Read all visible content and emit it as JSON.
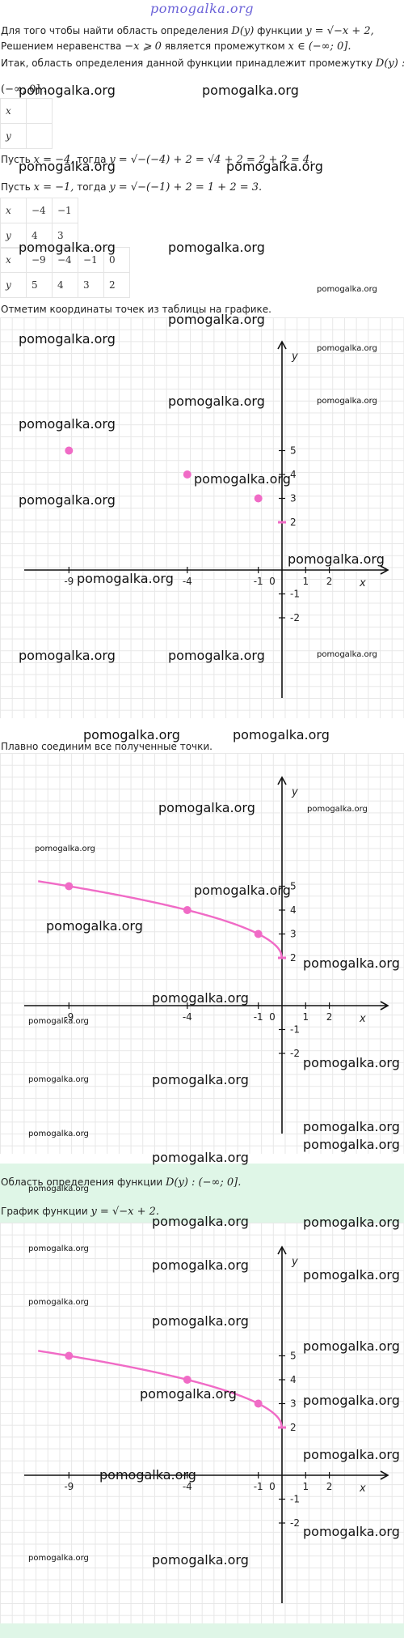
{
  "site": {
    "logo": "pomogalka.org"
  },
  "text": {
    "p1_a": "Для того чтобы найти область определения ",
    "p1_dy": "D(y)",
    "p1_b": " функции ",
    "p1_func": "y = √−x + 2,",
    "p2_a": "Решением неравенства ",
    "p2_ineq": "−x ⩾ 0",
    "p2_b": " является промежутком ",
    "p2_set": "x ∈ (−∞; 0].",
    "p3_a": "Итак, область определения данной функции принадлежит промежутку ",
    "p3_dy": "D(y) :",
    "p4_interval": "(−∞; 0]",
    "p4_dot": " .",
    "p5_a": "Пусть ",
    "p5_x": "x = −4,",
    "p5_b": " тогда ",
    "p5_expr": "y = √−(−4) + 2 = √4 + 2 = 2 + 2 = 4.",
    "p6_a": "Пусть ",
    "p6_x": "x = −1,",
    "p6_b": " тогда ",
    "p6_expr": "y = √−(−1) + 2 = 1 + 2 = 3.",
    "p7": "Отметим координаты точек из таблицы на графике.",
    "p8": "Плавно соединим все полученные точки.",
    "p9_a": "Область определения функции ",
    "p9_expr": "D(y) : (−∞; 0].",
    "p10_a": "График функции ",
    "p10_expr": "y = √−x + 2."
  },
  "tables": {
    "t1": {
      "h1": "x",
      "h2": "y"
    },
    "t2": {
      "h1": "x",
      "h2": "y",
      "x": [
        "−4",
        "−1"
      ],
      "y": [
        "4",
        "3"
      ]
    },
    "t3": {
      "h1": "x",
      "h2": "y",
      "x": [
        "−9",
        "−4",
        "−1",
        "0"
      ],
      "y": [
        "5",
        "4",
        "3",
        "2"
      ]
    }
  },
  "chart_data": [
    {
      "type": "scatter",
      "title": "",
      "xlabel": "x",
      "ylabel": "y",
      "x_ticks": [
        "-9",
        "-4",
        "-1",
        "0",
        "1",
        "2"
      ],
      "y_ticks": [
        "5",
        "4",
        "3",
        "2",
        "-1",
        "-2"
      ],
      "points": [
        {
          "x": -9,
          "y": 5
        },
        {
          "x": -4,
          "y": 4
        },
        {
          "x": -1,
          "y": 3
        },
        {
          "x": 0,
          "y": 2
        }
      ],
      "grid": true
    },
    {
      "type": "line",
      "title": "",
      "xlabel": "x",
      "ylabel": "y",
      "x_ticks": [
        "-9",
        "-4",
        "-1",
        "0",
        "1",
        "2"
      ],
      "y_ticks": [
        "5",
        "4",
        "3",
        "2",
        "-1",
        "-2"
      ],
      "points": [
        {
          "x": -9,
          "y": 5
        },
        {
          "x": -4,
          "y": 4
        },
        {
          "x": -1,
          "y": 3
        },
        {
          "x": 0,
          "y": 2
        }
      ],
      "function": "y = √−x + 2",
      "grid": true
    },
    {
      "type": "line",
      "title": "",
      "xlabel": "x",
      "ylabel": "y",
      "x_ticks": [
        "-9",
        "-4",
        "-1",
        "0",
        "1",
        "2"
      ],
      "y_ticks": [
        "5",
        "4",
        "3",
        "2",
        "-1",
        "-2"
      ],
      "points": [
        {
          "x": -9,
          "y": 5
        },
        {
          "x": -4,
          "y": 4
        },
        {
          "x": -1,
          "y": 3
        },
        {
          "x": 0,
          "y": 2
        }
      ],
      "function": "y = √−x + 2",
      "grid": true
    }
  ],
  "colors": {
    "curve": "#f06bc6",
    "point": "#f06bc6",
    "highlight_band": "#dff6e7",
    "logo": "#6b62d8",
    "grid": "#e7e7e7"
  },
  "watermark": {
    "text": "pomogalka.org"
  }
}
